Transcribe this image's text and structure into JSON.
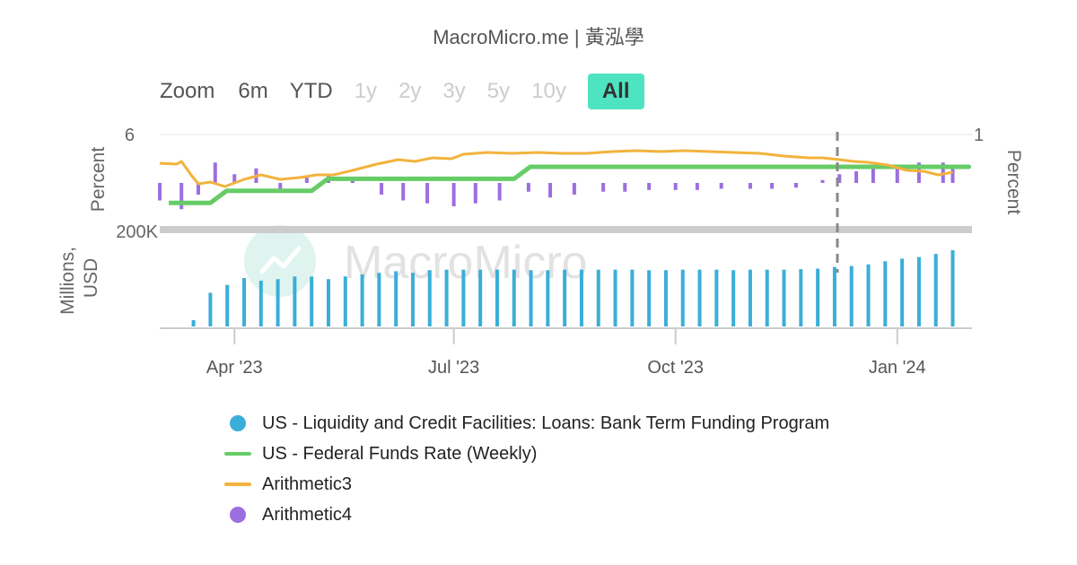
{
  "header": {
    "title": "MacroMicro.me | 黃泓學"
  },
  "zoom": {
    "label": "Zoom",
    "buttons": [
      {
        "label": "6m",
        "state": "enabled"
      },
      {
        "label": "YTD",
        "state": "enabled"
      },
      {
        "label": "1y",
        "state": "disabled"
      },
      {
        "label": "2y",
        "state": "disabled"
      },
      {
        "label": "3y",
        "state": "disabled"
      },
      {
        "label": "5y",
        "state": "disabled"
      },
      {
        "label": "10y",
        "state": "disabled"
      },
      {
        "label": "All",
        "state": "active"
      }
    ]
  },
  "watermark": {
    "text": "MacroMicro"
  },
  "colors": {
    "btfp": "#3aaed8",
    "fed_funds": "#66cc66",
    "arith3": "#f2b33d",
    "arith4": "#9c6ee0",
    "active_button": "#4ee4c1",
    "divider": "#cccccc",
    "vline": "#888888"
  },
  "chart_data": {
    "type": "combo",
    "x_axis": {
      "tick_labels": [
        "Apr '23",
        "Jul '23",
        "Oct '23",
        "Jan '24"
      ]
    },
    "upper_panel": {
      "ylabel_left": "Percent",
      "ylabel_right": "Percent",
      "left_axis_top_label": "6",
      "right_axis_top_label": "1",
      "series": [
        {
          "name": "US - Federal Funds Rate (Weekly)",
          "type": "step-line",
          "x": [
            "2023-03-01",
            "2023-03-22",
            "2023-05-03",
            "2023-07-26",
            "2024-01-24"
          ],
          "values": [
            4.58,
            4.83,
            5.08,
            5.33,
            5.33
          ]
        },
        {
          "name": "Arithmetic3",
          "type": "line",
          "x": [
            "2023-03-01",
            "2023-03-08",
            "2023-03-10",
            "2023-03-14",
            "2023-03-17",
            "2023-03-22",
            "2023-03-28",
            "2023-04-05",
            "2023-04-12",
            "2023-04-20",
            "2023-04-28",
            "2023-05-05",
            "2023-05-12",
            "2023-05-20",
            "2023-05-30",
            "2023-06-08",
            "2023-06-15",
            "2023-06-22",
            "2023-06-30",
            "2023-07-05",
            "2023-07-15",
            "2023-07-25",
            "2023-08-05",
            "2023-08-15",
            "2023-08-25",
            "2023-09-05",
            "2023-09-15",
            "2023-09-25",
            "2023-10-05",
            "2023-10-15",
            "2023-10-25",
            "2023-11-05",
            "2023-11-15",
            "2023-11-25",
            "2023-12-01",
            "2023-12-08",
            "2023-12-14",
            "2023-12-20",
            "2023-12-28",
            "2024-01-05",
            "2024-01-12",
            "2024-01-18",
            "2024-01-24"
          ],
          "values": [
            0.68,
            0.67,
            0.7,
            0.55,
            0.45,
            0.47,
            0.42,
            0.5,
            0.55,
            0.5,
            0.52,
            0.55,
            0.55,
            0.6,
            0.67,
            0.72,
            0.7,
            0.74,
            0.73,
            0.78,
            0.8,
            0.79,
            0.8,
            0.79,
            0.79,
            0.81,
            0.82,
            0.81,
            0.82,
            0.81,
            0.8,
            0.79,
            0.76,
            0.74,
            0.74,
            0.72,
            0.7,
            0.69,
            0.66,
            0.6,
            0.59,
            0.55,
            0.58
          ]
        },
        {
          "name": "Arithmetic4",
          "type": "column",
          "x": [
            "2023-03-01",
            "2023-03-10",
            "2023-03-17",
            "2023-03-24",
            "2023-04-01",
            "2023-04-10",
            "2023-04-20",
            "2023-05-01",
            "2023-05-10",
            "2023-05-20",
            "2023-06-01",
            "2023-06-10",
            "2023-06-20",
            "2023-07-01",
            "2023-07-10",
            "2023-07-20",
            "2023-08-01",
            "2023-08-10",
            "2023-08-20",
            "2023-09-01",
            "2023-09-10",
            "2023-09-20",
            "2023-10-01",
            "2023-10-10",
            "2023-10-20",
            "2023-11-01",
            "2023-11-10",
            "2023-11-20",
            "2023-12-01",
            "2023-12-08",
            "2023-12-15",
            "2023-12-22",
            "2024-01-01",
            "2024-01-10",
            "2024-01-20",
            "2024-01-24"
          ],
          "values": [
            -0.3,
            -0.45,
            -0.2,
            0.35,
            0.15,
            0.25,
            -0.15,
            0.1,
            0.15,
            0.05,
            -0.2,
            -0.3,
            -0.35,
            -0.4,
            -0.35,
            -0.3,
            -0.15,
            -0.25,
            -0.2,
            -0.15,
            -0.15,
            -0.12,
            -0.12,
            -0.12,
            -0.1,
            -0.1,
            -0.1,
            -0.08,
            0.05,
            0.15,
            0.2,
            0.25,
            0.3,
            0.35,
            0.35,
            0.3
          ]
        }
      ]
    },
    "lower_panel": {
      "ylabel": "Millions, USD",
      "top_tick_label": "200K",
      "series": [
        {
          "name": "US - Liquidity and Credit Facilities: Loans: Bank Term Funding Program",
          "type": "column",
          "x": [
            "2023-03-15",
            "2023-03-22",
            "2023-03-29",
            "2023-04-05",
            "2023-04-12",
            "2023-04-19",
            "2023-04-26",
            "2023-05-03",
            "2023-05-10",
            "2023-05-17",
            "2023-05-24",
            "2023-05-31",
            "2023-06-07",
            "2023-06-14",
            "2023-06-21",
            "2023-06-28",
            "2023-07-05",
            "2023-07-12",
            "2023-07-19",
            "2023-07-26",
            "2023-08-02",
            "2023-08-09",
            "2023-08-16",
            "2023-08-23",
            "2023-08-30",
            "2023-09-06",
            "2023-09-13",
            "2023-09-20",
            "2023-09-27",
            "2023-10-04",
            "2023-10-11",
            "2023-10-18",
            "2023-10-25",
            "2023-11-01",
            "2023-11-08",
            "2023-11-15",
            "2023-11-22",
            "2023-11-29",
            "2023-12-06",
            "2023-12-13",
            "2023-12-20",
            "2023-12-27",
            "2024-01-03",
            "2024-01-10",
            "2024-01-17",
            "2024-01-24"
          ],
          "values": [
            12,
            64,
            79,
            92,
            87,
            90,
            95,
            95,
            90,
            95,
            99,
            102,
            105,
            102,
            107,
            108,
            108,
            108,
            108,
            108,
            107,
            107,
            108,
            108,
            108,
            108,
            108,
            107,
            107,
            108,
            108,
            108,
            107,
            108,
            108,
            108,
            109,
            110,
            113,
            115,
            118,
            124,
            129,
            132,
            138,
            145
          ]
        }
      ]
    },
    "legend": {
      "placement": "bottom-center",
      "items": [
        "US - Liquidity and Credit Facilities: Loans: Bank Term Funding Program",
        "US - Federal Funds Rate (Weekly)",
        "Arithmetic3",
        "Arithmetic4"
      ]
    }
  }
}
